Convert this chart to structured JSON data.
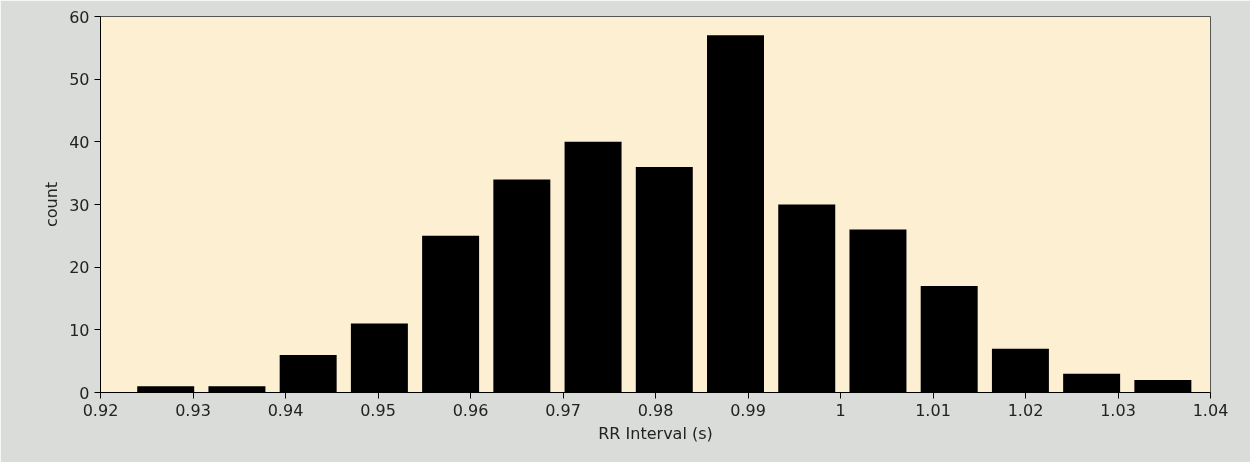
{
  "chart_data": {
    "type": "histogram",
    "xlabel": "RR Interval (s)",
    "ylabel": "count",
    "bins": [
      0.9232,
      0.9309,
      0.9386,
      0.9463,
      0.954,
      0.9617,
      0.9694,
      0.9771,
      0.9848,
      0.9925,
      1.0002,
      1.0079,
      1.0156,
      1.0233,
      1.031,
      1.0387
    ],
    "values": [
      1,
      1,
      6,
      11,
      25,
      34,
      40,
      36,
      57,
      30,
      26,
      17,
      7,
      3,
      2
    ],
    "color": "#000000",
    "xlim": [
      0.92,
      1.04
    ],
    "xticks": [
      0.92,
      0.93,
      0.94,
      0.95,
      0.96,
      0.97,
      0.98,
      0.99,
      1,
      1.01,
      1.02,
      1.03,
      1.04
    ],
    "ylim": [
      0,
      60
    ],
    "yticks": [
      0,
      10,
      20,
      30,
      40,
      50,
      60
    ],
    "grid": false
  }
}
